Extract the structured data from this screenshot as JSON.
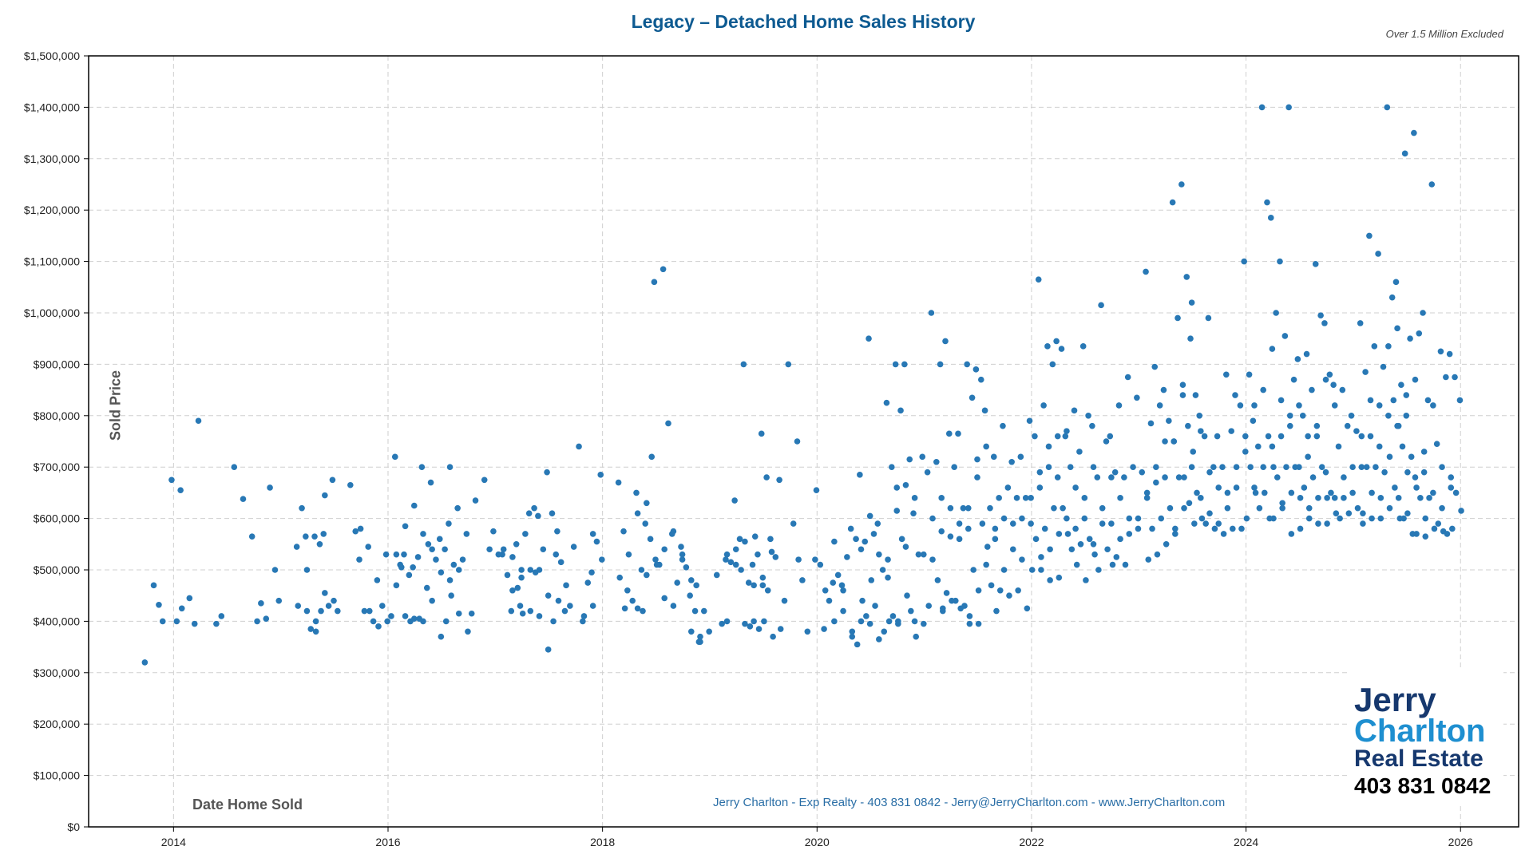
{
  "chart_data": {
    "type": "scatter",
    "title": "Legacy – Detached Home Sales History",
    "subtitle": "Over 1.5 Million Excluded",
    "xlabel": "Date Home Sold",
    "ylabel": "Sold Price",
    "xlim": [
      "2013-03",
      "2026-07"
    ],
    "ylim": [
      0,
      1500000
    ],
    "grid": true,
    "color": "#2878b5",
    "x_ticks": [
      "2014",
      "2016",
      "2018",
      "2020",
      "2022",
      "2024",
      "2026"
    ],
    "y_ticks": [
      {
        "value": 0,
        "label": "$0"
      },
      {
        "value": 100000,
        "label": "$100,000"
      },
      {
        "value": 200000,
        "label": "$200,000"
      },
      {
        "value": 300000,
        "label": "$300,000"
      },
      {
        "value": 400000,
        "label": "$400,000"
      },
      {
        "value": 500000,
        "label": "$500,000"
      },
      {
        "value": 600000,
        "label": "$600,000"
      },
      {
        "value": 700000,
        "label": "$700,000"
      },
      {
        "value": 800000,
        "label": "$800,000"
      },
      {
        "value": 900000,
        "label": "$900,000"
      },
      {
        "value": 1000000,
        "label": "$1,000,000"
      },
      {
        "value": 1100000,
        "label": "$1,100,000"
      },
      {
        "value": 1200000,
        "label": "$1,200,000"
      },
      {
        "value": 1300000,
        "label": "$1,300,000"
      },
      {
        "value": 1400000,
        "label": "$1,400,000"
      },
      {
        "value": 1500000,
        "label": "$1,500,000"
      }
    ],
    "points_by_month": {
      "2013-10": [
        320
      ],
      "2013-11": [
        470,
        432
      ],
      "2013-12": [
        400
      ],
      "2014-01": [
        675,
        400,
        425
      ],
      "2014-02": [
        655
      ],
      "2014-03": [
        445,
        395
      ],
      "2014-04": [
        790
      ],
      "2014-06": [
        395,
        410
      ],
      "2014-08": [
        700
      ],
      "2014-09": [
        638
      ],
      "2014-10": [
        565,
        400
      ],
      "2014-11": [
        435,
        405
      ],
      "2014-12": [
        660,
        500
      ],
      "2015-01": [
        440
      ],
      "2015-03": [
        545,
        620,
        500,
        430
      ],
      "2015-04": [
        565,
        385,
        380,
        420
      ],
      "2015-05": [
        565,
        550,
        645,
        400,
        420
      ],
      "2015-06": [
        570,
        430,
        440,
        455
      ],
      "2015-07": [
        675,
        420
      ],
      "2015-09": [
        665,
        575,
        580
      ],
      "2015-10": [
        520,
        420,
        420
      ],
      "2015-11": [
        545,
        400
      ],
      "2015-12": [
        480,
        430,
        400,
        390
      ],
      "2016-01": [
        530,
        410,
        470
      ],
      "2016-02": [
        720,
        510,
        585,
        530,
        505
      ],
      "2016-03": [
        530,
        490,
        625,
        410,
        400
      ],
      "2016-04": [
        505,
        525,
        570,
        405,
        405
      ],
      "2016-05": [
        700,
        465,
        440,
        400,
        550
      ],
      "2016-06": [
        670,
        520,
        495,
        540
      ],
      "2016-07": [
        560,
        540,
        700,
        370,
        400,
        450
      ],
      "2016-08": [
        590,
        510,
        500,
        480
      ],
      "2016-09": [
        620,
        520,
        380,
        415
      ],
      "2016-10": [
        570,
        415
      ],
      "2016-11": [
        635
      ],
      "2016-12": [
        675,
        540
      ],
      "2017-01": [
        575,
        530,
        540
      ],
      "2017-02": [
        530,
        490,
        460
      ],
      "2017-03": [
        420,
        550,
        500,
        525,
        465,
        415
      ],
      "2017-04": [
        430,
        570,
        500,
        485
      ],
      "2017-05": [
        610,
        620,
        500,
        420,
        495
      ],
      "2017-06": [
        605,
        540,
        450,
        410
      ],
      "2017-07": [
        690,
        610,
        575,
        345,
        400,
        440
      ],
      "2017-08": [
        530,
        515,
        470
      ],
      "2017-09": [
        420,
        430
      ],
      "2017-10": [
        545,
        740,
        410
      ],
      "2017-11": [
        400,
        475,
        570
      ],
      "2017-12": [
        495,
        555,
        520,
        430
      ],
      "2018-01": [
        685
      ],
      "2018-03": [
        670,
        575,
        530,
        485,
        425
      ],
      "2018-04": [
        460,
        440,
        425
      ],
      "2018-05": [
        650,
        500,
        490,
        610,
        420
      ],
      "2018-06": [
        590,
        560,
        520,
        630,
        720,
        510
      ],
      "2018-07": [
        1060,
        510,
        445
      ],
      "2018-08": [
        1085,
        785,
        575,
        540
      ],
      "2018-09": [
        570,
        475,
        520,
        430
      ],
      "2018-10": [
        545,
        505,
        480,
        530
      ],
      "2018-11": [
        450,
        420,
        360,
        380,
        470
      ],
      "2018-12": [
        360,
        420,
        380,
        370
      ],
      "2019-02": [
        490,
        395,
        400
      ],
      "2019-03": [
        520,
        515,
        510,
        530
      ],
      "2019-04": [
        635,
        560,
        555,
        540,
        500
      ],
      "2019-05": [
        900,
        475,
        470,
        395,
        390,
        565
      ],
      "2019-06": [
        510,
        530,
        485,
        400,
        385
      ],
      "2019-07": [
        765,
        680,
        535,
        470,
        460,
        370,
        400
      ],
      "2019-08": [
        560,
        525,
        385
      ],
      "2019-09": [
        675,
        440
      ],
      "2019-10": [
        900,
        590,
        520
      ],
      "2019-11": [
        750,
        480,
        380
      ],
      "2020-01": [
        520,
        510,
        460,
        655
      ],
      "2020-02": [
        385,
        440,
        555
      ],
      "2020-03": [
        475,
        490,
        420,
        400
      ],
      "2020-04": [
        470,
        525,
        380,
        460
      ],
      "2020-05": [
        580,
        560,
        540,
        370,
        355,
        440
      ],
      "2020-06": [
        685,
        555,
        605,
        400,
        410,
        480
      ],
      "2020-07": [
        950,
        570,
        530,
        395,
        430
      ],
      "2020-08": [
        590,
        500,
        485,
        365,
        380,
        400
      ],
      "2020-09": [
        825,
        700,
        660,
        520,
        410,
        395
      ],
      "2020-10": [
        900,
        810,
        665,
        615,
        560,
        450,
        400
      ],
      "2020-11": [
        900,
        715,
        640,
        545,
        420,
        370
      ],
      "2020-12": [
        610,
        530,
        395,
        400
      ],
      "2021-01": [
        720,
        690,
        600,
        530,
        430
      ],
      "2021-02": [
        1000,
        710,
        640,
        520,
        480,
        425
      ],
      "2021-03": [
        900,
        945,
        620,
        575,
        455,
        440,
        420
      ],
      "2021-04": [
        765,
        700,
        590,
        565,
        440,
        425
      ],
      "2021-05": [
        765,
        620,
        580,
        560,
        430,
        410
      ],
      "2021-06": [
        900,
        835,
        680,
        620,
        500,
        460,
        395
      ],
      "2021-07": [
        890,
        870,
        740,
        715,
        590,
        545,
        395
      ],
      "2021-08": [
        810,
        620,
        580,
        510,
        470,
        420
      ],
      "2021-09": [
        720,
        640,
        600,
        560,
        460
      ],
      "2021-10": [
        780,
        660,
        590,
        500,
        450
      ],
      "2021-11": [
        710,
        640,
        600,
        540,
        460
      ],
      "2021-12": [
        720,
        640,
        590,
        520,
        425
      ],
      "2022-01": [
        790,
        760,
        690,
        640,
        560,
        525,
        500
      ],
      "2022-02": [
        1065,
        820,
        740,
        660,
        580,
        540,
        500
      ],
      "2022-03": [
        935,
        900,
        760,
        700,
        620,
        570,
        480
      ],
      "2022-04": [
        945,
        930,
        770,
        680,
        620,
        570,
        485
      ],
      "2022-05": [
        760,
        700,
        660,
        600,
        540,
        510
      ],
      "2022-06": [
        810,
        730,
        640,
        580,
        550,
        480
      ],
      "2022-07": [
        935,
        800,
        700,
        600,
        560,
        530
      ],
      "2022-08": [
        780,
        680,
        620,
        550,
        500
      ],
      "2022-09": [
        1015,
        750,
        680,
        590,
        540,
        510
      ],
      "2022-10": [
        760,
        690,
        640,
        590,
        525
      ],
      "2022-11": [
        820,
        680,
        600,
        560,
        510
      ],
      "2022-12": [
        875,
        700,
        600,
        570
      ],
      "2023-01": [
        835,
        690,
        650,
        580
      ],
      "2023-02": [
        1080,
        785,
        700,
        640,
        580,
        530,
        520
      ],
      "2023-03": [
        895,
        820,
        750,
        670,
        600,
        550
      ],
      "2023-04": [
        850,
        790,
        750,
        680,
        620,
        570
      ],
      "2023-05": [
        1215,
        990,
        840,
        750,
        680,
        620,
        580
      ],
      "2023-06": [
        1250,
        1070,
        1020,
        860,
        780,
        730,
        680,
        630,
        590
      ],
      "2023-07": [
        950,
        840,
        770,
        700,
        650,
        600
      ],
      "2023-08": [
        800,
        760,
        690,
        640,
        590
      ],
      "2023-09": [
        990,
        700,
        660,
        610,
        580
      ],
      "2023-10": [
        760,
        700,
        650,
        590,
        570
      ],
      "2023-11": [
        880,
        770,
        700,
        620,
        580
      ],
      "2023-12": [
        840,
        820,
        730,
        660,
        580
      ],
      "2024-01": [
        1100,
        880,
        820,
        760,
        700,
        650,
        600
      ],
      "2024-02": [
        790,
        740,
        700,
        660,
        620
      ],
      "2024-03": [
        1400,
        1215,
        930,
        850,
        760,
        700,
        650,
        600
      ],
      "2024-04": [
        1185,
        1000,
        830,
        740,
        680,
        630,
        600
      ],
      "2024-05": [
        1100,
        955,
        800,
        760,
        700,
        650,
        620
      ],
      "2024-06": [
        1400,
        870,
        820,
        780,
        700,
        640,
        570
      ],
      "2024-07": [
        910,
        800,
        760,
        700,
        660,
        620,
        580
      ],
      "2024-08": [
        920,
        850,
        780,
        720,
        680,
        640,
        600
      ],
      "2024-09": [
        1095,
        995,
        870,
        760,
        700,
        640,
        590
      ],
      "2024-10": [
        980,
        880,
        820,
        690,
        650,
        610,
        590
      ],
      "2024-11": [
        860,
        740,
        680,
        640,
        600
      ],
      "2024-12": [
        850,
        780,
        700,
        640,
        610
      ],
      "2025-01": [
        800,
        770,
        700,
        650,
        620,
        590
      ],
      "2025-02": [
        980,
        885,
        830,
        760,
        700,
        650,
        610
      ],
      "2025-03": [
        1150,
        935,
        820,
        760,
        700,
        640,
        600
      ],
      "2025-04": [
        1115,
        895,
        800,
        740,
        690,
        620,
        600
      ],
      "2025-05": [
        1400,
        1030,
        970,
        935,
        830,
        780,
        720,
        660,
        600
      ],
      "2025-06": [
        1060,
        860,
        840,
        780,
        740,
        690,
        640,
        600
      ],
      "2025-07": [
        1310,
        950,
        870,
        800,
        720,
        660,
        610,
        570
      ],
      "2025-08": [
        1350,
        960,
        730,
        680,
        640,
        600,
        570
      ],
      "2025-09": [
        1000,
        830,
        820,
        690,
        640,
        580,
        565
      ],
      "2025-10": [
        1250,
        745,
        700,
        650,
        590,
        575
      ],
      "2025-11": [
        925,
        875,
        660,
        620,
        570
      ],
      "2025-12": [
        920,
        875,
        830,
        680,
        650,
        615,
        580
      ]
    }
  },
  "footer": "Jerry Charlton - Exp Realty - 403 831 0842 - Jerry@JerryCharlton.com - www.JerryCharlton.com",
  "logo": {
    "line1": "Jerry",
    "line2": "Charlton",
    "line3": "Real Estate",
    "phone": "403 831 0842"
  }
}
